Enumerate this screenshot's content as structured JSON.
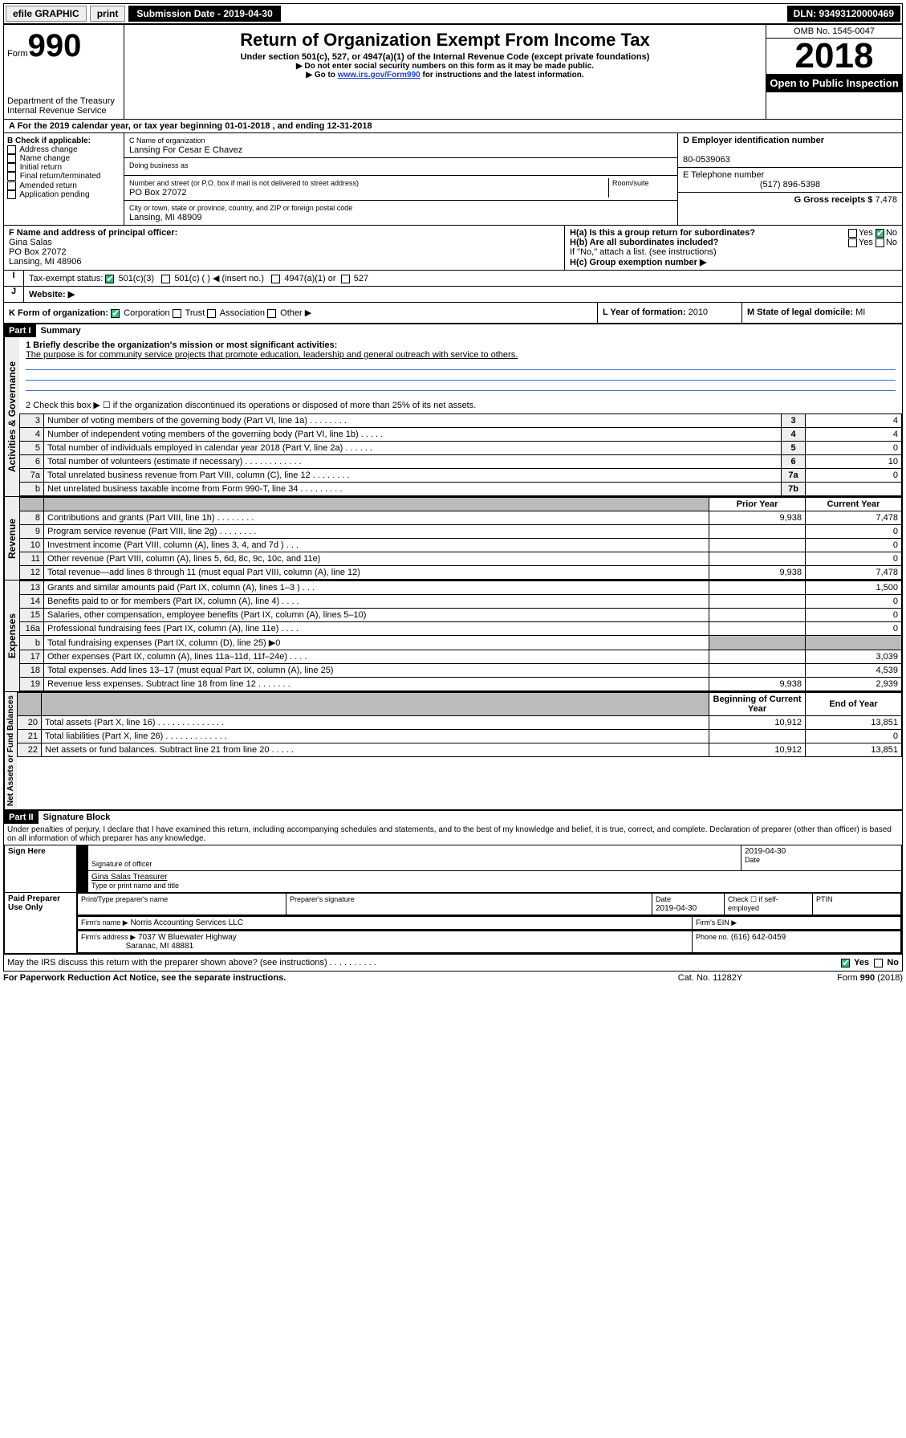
{
  "topbar": {
    "efile": "efile GRAPHIC",
    "print": "print",
    "subdate_label": "Submission Date - 2019-04-30",
    "dln": "DLN: 93493120000469"
  },
  "header": {
    "form_prefix": "Form",
    "form_num": "990",
    "dept1": "Department of the Treasury",
    "dept2": "Internal Revenue Service",
    "title": "Return of Organization Exempt From Income Tax",
    "sub1": "Under section 501(c), 527, or 4947(a)(1) of the Internal Revenue Code (except private foundations)",
    "sub2": "▶ Do not enter social security numbers on this form as it may be made public.",
    "sub3_a": "▶ Go to ",
    "sub3_link": "www.irs.gov/Form990",
    "sub3_b": " for instructions and the latest information.",
    "omb": "OMB No. 1545-0047",
    "year": "2018",
    "open": "Open to Public Inspection"
  },
  "period": "A For the 2019 calendar year, or tax year beginning 01-01-2018   , and ending 12-31-2018",
  "boxB": {
    "label": "B Check if applicable:",
    "o1": "Address change",
    "o2": "Name change",
    "o3": "Initial return",
    "o4": "Final return/terminated",
    "o5": "Amended return",
    "o6": "Application pending"
  },
  "boxC": {
    "name_label": "C Name of organization",
    "name": "Lansing For Cesar E Chavez",
    "dba_label": "Doing business as",
    "addr_label": "Number and street (or P.O. box if mail is not delivered to street address)",
    "room": "Room/suite",
    "addr": "PO Box 27072",
    "city_label": "City or town, state or province, country, and ZIP or foreign postal code",
    "city": "Lansing, MI  48909"
  },
  "boxD": {
    "label": "D Employer identification number",
    "val": "80-0539063"
  },
  "boxE": {
    "label": "E Telephone number",
    "val": "(517) 896-5398"
  },
  "boxG": {
    "label": "G Gross receipts $",
    "val": "7,478"
  },
  "boxF": {
    "label": "F  Name and address of principal officer:",
    "name": "Gina Salas",
    "addr1": "PO Box 27072",
    "addr2": "Lansing, MI  48906"
  },
  "boxH": {
    "a": "H(a)  Is this a group return for subordinates?",
    "b": "H(b)  Are all subordinates included?",
    "note": "If \"No,\" attach a list. (see instructions)",
    "c": "H(c)  Group exemption number ▶"
  },
  "boxI": {
    "label": "Tax-exempt status:",
    "o1": "501(c)(3)",
    "o2": "501(c) (   ) ◀ (insert no.)",
    "o3": "4947(a)(1) or",
    "o4": "527"
  },
  "boxJ": {
    "label": "Website: ▶"
  },
  "boxK": {
    "label": "K Form of organization:",
    "o1": "Corporation",
    "o2": "Trust",
    "o3": "Association",
    "o4": "Other ▶"
  },
  "boxL": {
    "label": "L Year of formation:",
    "val": "2010"
  },
  "boxM": {
    "label": "M State of legal domicile:",
    "val": "MI"
  },
  "part1": {
    "hdr": "Part I",
    "title": "Summary",
    "side1": "Activities & Governance",
    "side2": "Revenue",
    "side3": "Expenses",
    "side4": "Net Assets or Fund Balances",
    "l1": "1  Briefly describe the organization's mission or most significant activities:",
    "mission": "The purpose is for community service projects that promote education, leadership and general outreach with service to others.",
    "l2": "2    Check this box ▶ ☐  if the organization discontinued its operations or disposed of more than 25% of its net assets.",
    "rows_a": [
      {
        "n": "3",
        "d": "Number of voting members of the governing body (Part VI, line 1a)   .    .    .    .    .    .    .    .",
        "k": "3",
        "v": "4"
      },
      {
        "n": "4",
        "d": "Number of independent voting members of the governing body (Part VI, line 1b)   .    .    .    .    .",
        "k": "4",
        "v": "4"
      },
      {
        "n": "5",
        "d": "Total number of individuals employed in calendar year 2018 (Part V, line 2a)   .    .    .    .    .    .",
        "k": "5",
        "v": "0"
      },
      {
        "n": "6",
        "d": "Total number of volunteers (estimate if necessary)   .    .    .    .    .    .    .    .    .    .    .    .",
        "k": "6",
        "v": "10"
      },
      {
        "n": "7a",
        "d": "Total unrelated business revenue from Part VIII, column (C), line 12   .    .    .    .    .    .    .    .",
        "k": "7a",
        "v": "0"
      },
      {
        "n": "b",
        "d": "Net unrelated business taxable income from Form 990-T, line 34   .    .    .    .    .    .    .    .    .",
        "k": "7b",
        "v": ""
      }
    ],
    "col_prior": "Prior Year",
    "col_curr": "Current Year",
    "rows_rev": [
      {
        "n": "8",
        "d": "Contributions and grants (Part VIII, line 1h)   .    .    .    .    .    .    .    .",
        "p": "9,938",
        "c": "7,478"
      },
      {
        "n": "9",
        "d": "Program service revenue (Part VIII, line 2g)   .    .    .    .    .    .    .    .",
        "p": "",
        "c": "0"
      },
      {
        "n": "10",
        "d": "Investment income (Part VIII, column (A), lines 3, 4, and 7d )   .    .    .",
        "p": "",
        "c": "0"
      },
      {
        "n": "11",
        "d": "Other revenue (Part VIII, column (A), lines 5, 6d, 8c, 9c, 10c, and 11e)",
        "p": "",
        "c": "0"
      },
      {
        "n": "12",
        "d": "Total revenue—add lines 8 through 11 (must equal Part VIII, column (A), line 12)",
        "p": "9,938",
        "c": "7,478"
      }
    ],
    "rows_exp": [
      {
        "n": "13",
        "d": "Grants and similar amounts paid (Part IX, column (A), lines 1–3 )   .    .    .",
        "p": "",
        "c": "1,500"
      },
      {
        "n": "14",
        "d": "Benefits paid to or for members (Part IX, column (A), line 4)   .    .    .    .",
        "p": "",
        "c": "0"
      },
      {
        "n": "15",
        "d": "Salaries, other compensation, employee benefits (Part IX, column (A), lines 5–10)",
        "p": "",
        "c": "0"
      },
      {
        "n": "16a",
        "d": "Professional fundraising fees (Part IX, column (A), line 11e)   .    .    .    .",
        "p": "",
        "c": "0"
      },
      {
        "n": "b",
        "d": "Total fundraising expenses (Part IX, column (D), line 25) ▶0",
        "p": "shade",
        "c": "shade"
      },
      {
        "n": "17",
        "d": "Other expenses (Part IX, column (A), lines 11a–11d, 11f–24e)   .    .    .    .",
        "p": "",
        "c": "3,039"
      },
      {
        "n": "18",
        "d": "Total expenses. Add lines 13–17 (must equal Part IX, column (A), line 25)",
        "p": "",
        "c": "4,539"
      },
      {
        "n": "19",
        "d": "Revenue less expenses. Subtract line 18 from line 12   .    .    .    .    .    .    .",
        "p": "9,938",
        "c": "2,939"
      }
    ],
    "col_beg": "Beginning of Current Year",
    "col_end": "End of Year",
    "rows_net": [
      {
        "n": "20",
        "d": "Total assets (Part X, line 16)   .    .    .    .    .    .    .    .    .    .    .    .    .    .",
        "p": "10,912",
        "c": "13,851"
      },
      {
        "n": "21",
        "d": "Total liabilities (Part X, line 26)   .    .    .    .    .    .    .    .    .    .    .    .    .",
        "p": "",
        "c": "0"
      },
      {
        "n": "22",
        "d": "Net assets or fund balances. Subtract line 21 from line 20   .    .    .    .    .",
        "p": "10,912",
        "c": "13,851"
      }
    ]
  },
  "part2": {
    "hdr": "Part II",
    "title": "Signature Block",
    "decl": "Under penalties of perjury, I declare that I have examined this return, including accompanying schedules and statements, and to the best of my knowledge and belief, it is true, correct, and complete. Declaration of preparer (other than officer) is based on all information of which preparer has any knowledge.",
    "sign_here": "Sign Here",
    "sig_officer": "Signature of officer",
    "sig_date": "2019-04-30",
    "date_label": "Date",
    "officer_name": "Gina Salas  Treasurer",
    "type_name": "Type or print name and title",
    "paid": "Paid Preparer Use Only",
    "prep_name_label": "Print/Type preparer's name",
    "prep_sig_label": "Preparer's signature",
    "prep_date": "2019-04-30",
    "check_self": "Check ☐ if self-employed",
    "ptin": "PTIN",
    "firm_name_label": "Firm's name     ▶",
    "firm_name": "Norris Accounting Services LLC",
    "firm_ein": "Firm's EIN ▶",
    "firm_addr_label": "Firm's address ▶",
    "firm_addr": "7037 W Bluewater Highway",
    "firm_city": "Saranac, MI  48881",
    "firm_phone_label": "Phone no.",
    "firm_phone": "(616) 642-0459",
    "discuss": "May the IRS discuss this return with the preparer shown above? (see instructions)    .    .    .    .    .    .    .    .    .    .",
    "yes": "Yes",
    "no": "No"
  },
  "footer": {
    "pra": "For Paperwork Reduction Act Notice, see the separate instructions.",
    "cat": "Cat. No. 11282Y",
    "form": "Form 990 (2018)"
  }
}
